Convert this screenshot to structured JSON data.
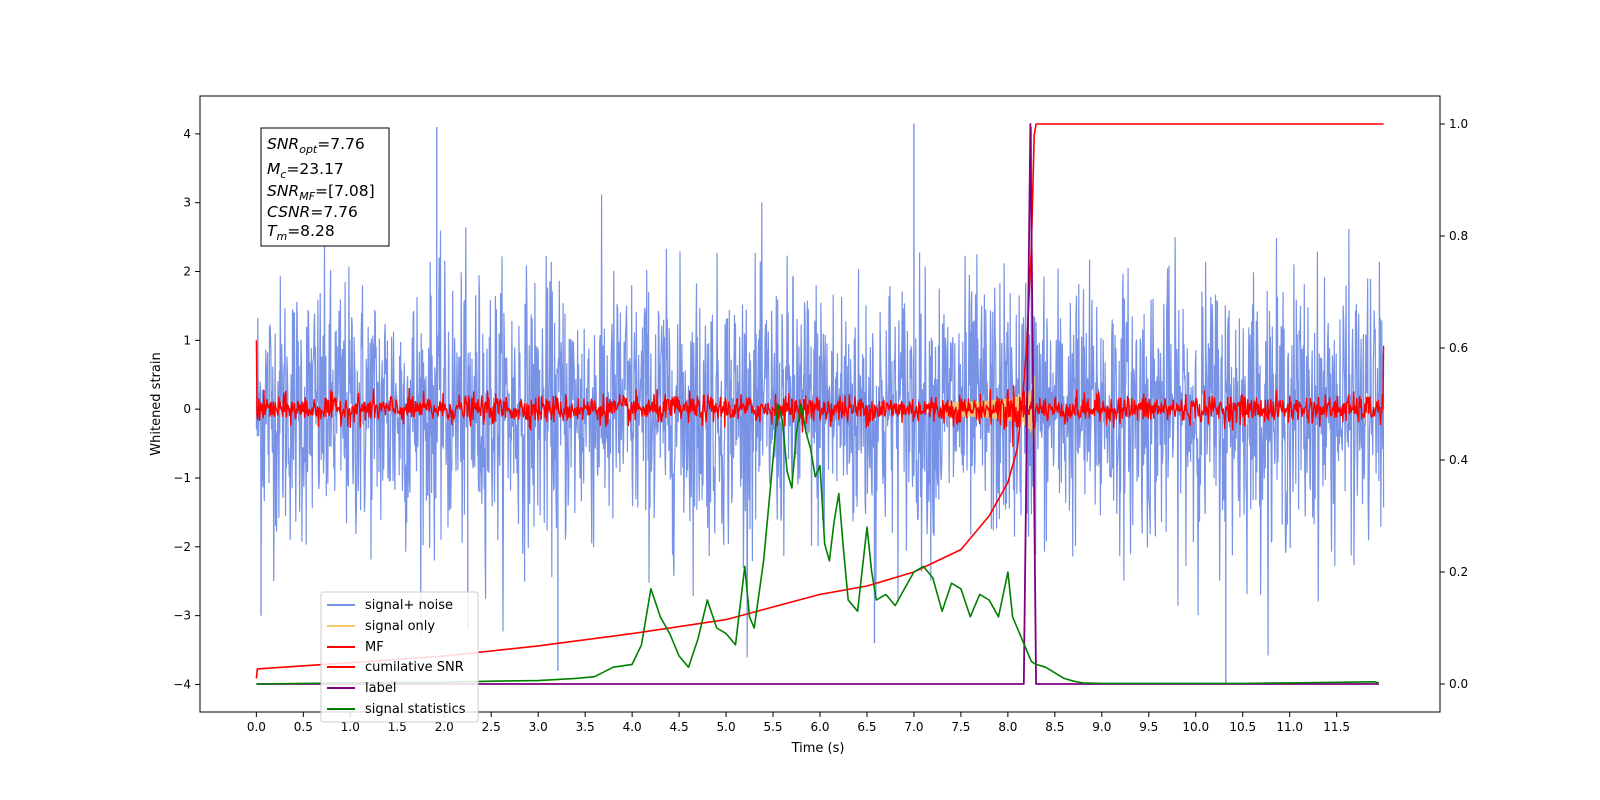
{
  "chart_data": {
    "type": "line",
    "xlabel": "Time (s)",
    "ylabel": "Whitened strain",
    "xlim": [
      -0.6,
      12.6
    ],
    "ylim_left": [
      -4.4,
      4.55
    ],
    "ylim_right": [
      -0.05,
      1.05
    ],
    "x_ticks": [
      0.0,
      0.5,
      1.0,
      1.5,
      2.0,
      2.5,
      3.0,
      3.5,
      4.0,
      4.5,
      5.0,
      5.5,
      6.0,
      6.5,
      7.0,
      7.5,
      8.0,
      8.5,
      9.0,
      9.5,
      10.0,
      10.5,
      11.0,
      11.5
    ],
    "x_tick_labels": [
      "0.0",
      "0.5",
      "1.0",
      "1.5",
      "2.0",
      "2.5",
      "3.0",
      "3.5",
      "4.0",
      "4.5",
      "5.0",
      "5.5",
      "6.0",
      "6.5",
      "7.0",
      "7.5",
      "8.0",
      "8.5",
      "9.0",
      "9.5",
      "10.0",
      "10.5",
      "11.0",
      "11.5"
    ],
    "y_ticks_left": [
      4,
      3,
      2,
      1,
      0,
      -1,
      -2,
      -3,
      -4
    ],
    "y_tick_labels_left": [
      "4",
      "3",
      "2",
      "1",
      "0",
      "−1",
      "−2",
      "−3",
      "−4"
    ],
    "y_ticks_right": [
      1.0,
      0.8,
      0.6,
      0.4,
      0.2,
      0.0
    ],
    "y_tick_labels_right": [
      "1.0",
      "0.8",
      "0.6",
      "0.4",
      "0.2",
      "0.0"
    ],
    "grid": false,
    "legend_placement": "lower-left",
    "series": [
      {
        "name": "signal+ noise",
        "color": "#7893e6",
        "axis": "left",
        "kind": "noise",
        "x_range": [
          0.0,
          12.0
        ],
        "amplitude": 1.0,
        "extremes": [
          [
            1.92,
            4.1
          ],
          [
            7.0,
            4.15
          ],
          [
            6.58,
            -3.4
          ],
          [
            10.32,
            -4.0
          ],
          [
            3.21,
            -3.8
          ],
          [
            0.05,
            -3.0
          ],
          [
            2.25,
            -3.2
          ],
          [
            8.25,
            4.1
          ]
        ]
      },
      {
        "name": "signal only",
        "color": "#f5c86b",
        "axis": "left",
        "kind": "chirp",
        "x_range": [
          7.3,
          8.28
        ],
        "peak_amplitude": 0.55
      },
      {
        "name": "MF",
        "color": "#ff0000",
        "axis": "left",
        "kind": "noise",
        "x_range": [
          0.0,
          12.0
        ],
        "amplitude": 0.1,
        "edge_values": [
          1.0,
          0.92
        ]
      },
      {
        "name": "cumilative SNR",
        "color": "#ff0000",
        "axis": "right",
        "kind": "line",
        "x": [
          0.0,
          0.01,
          1.0,
          2.0,
          3.0,
          4.0,
          5.0,
          6.0,
          6.5,
          7.0,
          7.5,
          7.8,
          8.0,
          8.1,
          8.15,
          8.2,
          8.25,
          8.28,
          8.3,
          9.0,
          12.0
        ],
        "y": [
          0.01,
          0.027,
          0.038,
          0.05,
          0.068,
          0.09,
          0.115,
          0.16,
          0.175,
          0.2,
          0.24,
          0.3,
          0.36,
          0.42,
          0.5,
          0.6,
          0.78,
          0.98,
          1.0,
          1.0,
          1.0
        ]
      },
      {
        "name": "label",
        "color": "#800080",
        "axis": "right",
        "kind": "line",
        "x": [
          0.0,
          8.17,
          8.24,
          8.3,
          11.95
        ],
        "y": [
          0.0,
          0.0,
          1.0,
          0.0,
          0.0
        ]
      },
      {
        "name": "signal statistics",
        "color": "#008000",
        "axis": "right",
        "kind": "line",
        "x": [
          0.0,
          0.5,
          1.0,
          1.5,
          2.0,
          2.5,
          3.0,
          3.4,
          3.6,
          3.8,
          4.0,
          4.1,
          4.2,
          4.3,
          4.4,
          4.5,
          4.6,
          4.7,
          4.8,
          4.9,
          5.0,
          5.1,
          5.2,
          5.25,
          5.3,
          5.4,
          5.5,
          5.55,
          5.6,
          5.65,
          5.7,
          5.75,
          5.8,
          5.85,
          5.9,
          5.95,
          6.0,
          6.05,
          6.1,
          6.15,
          6.2,
          6.25,
          6.3,
          6.4,
          6.5,
          6.55,
          6.6,
          6.7,
          6.8,
          6.9,
          7.0,
          7.1,
          7.2,
          7.3,
          7.4,
          7.5,
          7.6,
          7.7,
          7.8,
          7.9,
          8.0,
          8.05,
          8.1,
          8.15,
          8.2,
          8.25,
          8.3,
          8.4,
          8.5,
          8.6,
          8.7,
          8.8,
          9.0,
          9.5,
          10.0,
          10.5,
          11.0,
          11.5,
          11.9,
          11.95
        ],
        "y": [
          0.0,
          0.001,
          0.002,
          0.003,
          0.003,
          0.005,
          0.006,
          0.01,
          0.013,
          0.03,
          0.035,
          0.07,
          0.17,
          0.12,
          0.09,
          0.05,
          0.03,
          0.08,
          0.15,
          0.1,
          0.09,
          0.07,
          0.21,
          0.12,
          0.1,
          0.22,
          0.4,
          0.5,
          0.47,
          0.38,
          0.35,
          0.45,
          0.5,
          0.45,
          0.42,
          0.37,
          0.39,
          0.25,
          0.22,
          0.29,
          0.34,
          0.24,
          0.15,
          0.13,
          0.28,
          0.2,
          0.15,
          0.16,
          0.14,
          0.17,
          0.2,
          0.21,
          0.19,
          0.13,
          0.18,
          0.17,
          0.12,
          0.16,
          0.15,
          0.12,
          0.2,
          0.12,
          0.1,
          0.08,
          0.06,
          0.04,
          0.035,
          0.03,
          0.02,
          0.01,
          0.005,
          0.002,
          0.001,
          0.001,
          0.001,
          0.001,
          0.002,
          0.003,
          0.004,
          0.002
        ]
      }
    ],
    "annotations": {
      "line1": {
        "main": "SNR",
        "sub": "opt",
        "value": "=7.76"
      },
      "line2": {
        "main": "M",
        "sub": "c",
        "value": "=23.17"
      },
      "line3": {
        "main": "SNR",
        "sub": "MF",
        "value": "=[7.08]"
      },
      "line4": {
        "main": "CSNR",
        "sub": "",
        "value": "=7.76"
      },
      "line5": {
        "main": "T",
        "sub": "m",
        "value": "=8.28"
      }
    }
  }
}
